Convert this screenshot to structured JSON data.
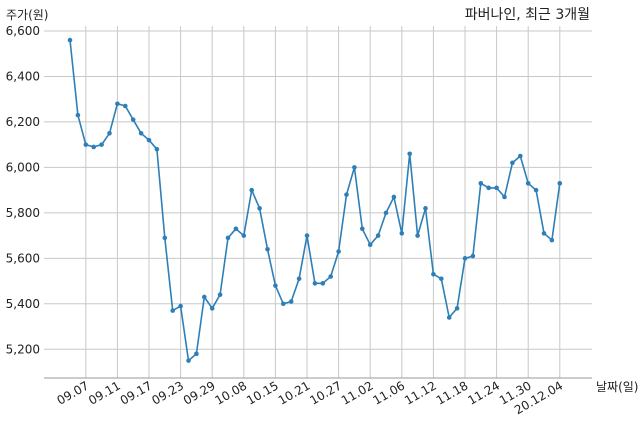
{
  "chart_data": {
    "type": "line",
    "title": "파버나인, 최근 3개월",
    "ylabel": "주가(원)",
    "xlabel": "날짜(일)",
    "ylim": [
      5100,
      6600
    ],
    "y_ticks": [
      5200,
      5400,
      5600,
      5800,
      6000,
      6200,
      6400,
      6600
    ],
    "y_tick_labels": [
      "5,200",
      "5,400",
      "5,600",
      "5,800",
      "6,000",
      "6,200",
      "6,400",
      "6,600"
    ],
    "x_tick_labels": [
      "09.07",
      "09.11",
      "09.17",
      "09.23",
      "09.29",
      "10.08",
      "10.15",
      "10.21",
      "10.27",
      "11.02",
      "11.06",
      "11.12",
      "11.18",
      "11.24",
      "11.30",
      "20.12.04"
    ],
    "x_tick_positions": [
      2,
      6,
      10,
      14,
      18,
      22,
      26,
      30,
      34,
      38,
      42,
      46,
      50,
      54,
      58,
      62
    ],
    "grid": true,
    "line_color": "#2e7fb8",
    "values": [
      6560,
      6230,
      6100,
      6090,
      6100,
      6150,
      6280,
      6270,
      6210,
      6150,
      6120,
      6080,
      5690,
      5370,
      5390,
      5150,
      5180,
      5430,
      5380,
      5440,
      5690,
      5730,
      5700,
      5900,
      5820,
      5640,
      5480,
      5400,
      5410,
      5510,
      5700,
      5490,
      5490,
      5520,
      5630,
      5880,
      6000,
      5730,
      5660,
      5700,
      5800,
      5870,
      5710,
      6060,
      5700,
      5820,
      5530,
      5510,
      5340,
      5380,
      5600,
      5610,
      5930,
      5910,
      5910,
      5870,
      6020,
      6050,
      5930,
      5900,
      5710,
      5680,
      5930
    ]
  }
}
